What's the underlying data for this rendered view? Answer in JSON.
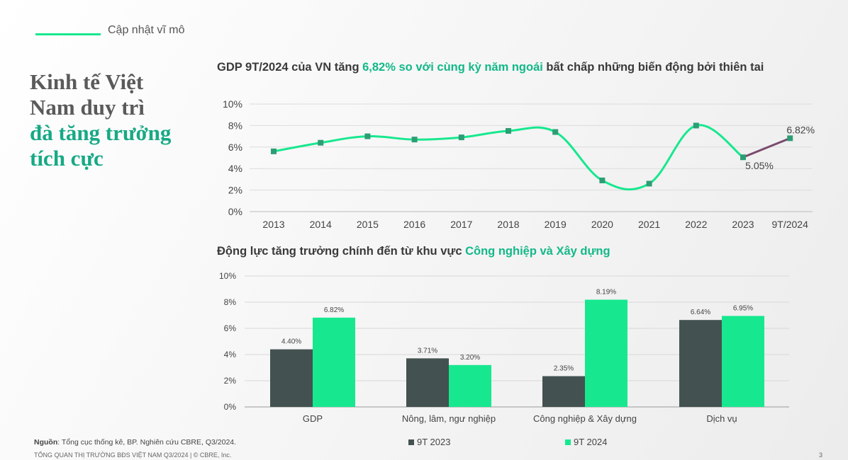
{
  "header": {
    "section": "Cập nhật vĩ mô"
  },
  "headline": {
    "line1": "Kinh tế Việt",
    "line2": "Nam duy trì",
    "line3": "đà tăng trưởng",
    "line4": "tích cực"
  },
  "chart1_title": {
    "part1": "GDP 9T/2024 của VN tăng ",
    "highlight": "6,82% so với cùng kỳ năm ngoái",
    "part2": " bất chấp những biến động bởi thiên tai"
  },
  "chart2_title": {
    "part1": "Động lực tăng trưởng chính đến từ khu vực ",
    "highlight": "Công nghiệp và Xây dựng"
  },
  "footer": {
    "source_label": "Nguồn",
    "source_text": ": Tổng cục thống kê, BP. Nghiên cứu CBRE, Q3/2024.",
    "bottom": "TỔNG QUAN THỊ TRƯỜNG BĐS VIỆT NAM Q3/2024 | © CBRE, Inc.",
    "page": "3"
  },
  "colors": {
    "accent": "#17e88f",
    "dark": "#435250",
    "line_purple": "#7a4a6e",
    "marker": "#2d9e74"
  },
  "chart_data": [
    {
      "type": "line",
      "categories": [
        "2013",
        "2014",
        "2015",
        "2016",
        "2017",
        "2018",
        "2019",
        "2020",
        "2021",
        "2022",
        "2023",
        "9T/2024"
      ],
      "values": [
        5.6,
        6.4,
        7.0,
        6.7,
        6.9,
        7.5,
        7.4,
        2.9,
        2.6,
        8.0,
        5.05,
        6.82
      ],
      "yticks": [
        "0%",
        "2%",
        "4%",
        "6%",
        "8%",
        "10%"
      ],
      "ylim": [
        0,
        10
      ],
      "data_labels": [
        {
          "index": 10,
          "text": "5.05%"
        },
        {
          "index": 11,
          "text": "6.82%"
        }
      ],
      "grid": true
    },
    {
      "type": "bar",
      "categories": [
        "GDP",
        "Nông, lâm, ngư nghiệp",
        "Công nghiệp & Xây dựng",
        "Dịch vụ"
      ],
      "series": [
        {
          "name": "9T 2023",
          "values": [
            4.4,
            3.71,
            2.35,
            6.64
          ],
          "labels": [
            "4.40%",
            "3.71%",
            "2.35%",
            "6.64%"
          ]
        },
        {
          "name": "9T 2024",
          "values": [
            6.82,
            3.2,
            8.19,
            6.95
          ],
          "labels": [
            "6.82%",
            "3.20%",
            "8.19%",
            "6.95%"
          ]
        }
      ],
      "yticks": [
        "0%",
        "2%",
        "4%",
        "6%",
        "8%",
        "10%"
      ],
      "ylim": [
        0,
        10
      ],
      "grid": true,
      "legend": "bottom"
    }
  ]
}
